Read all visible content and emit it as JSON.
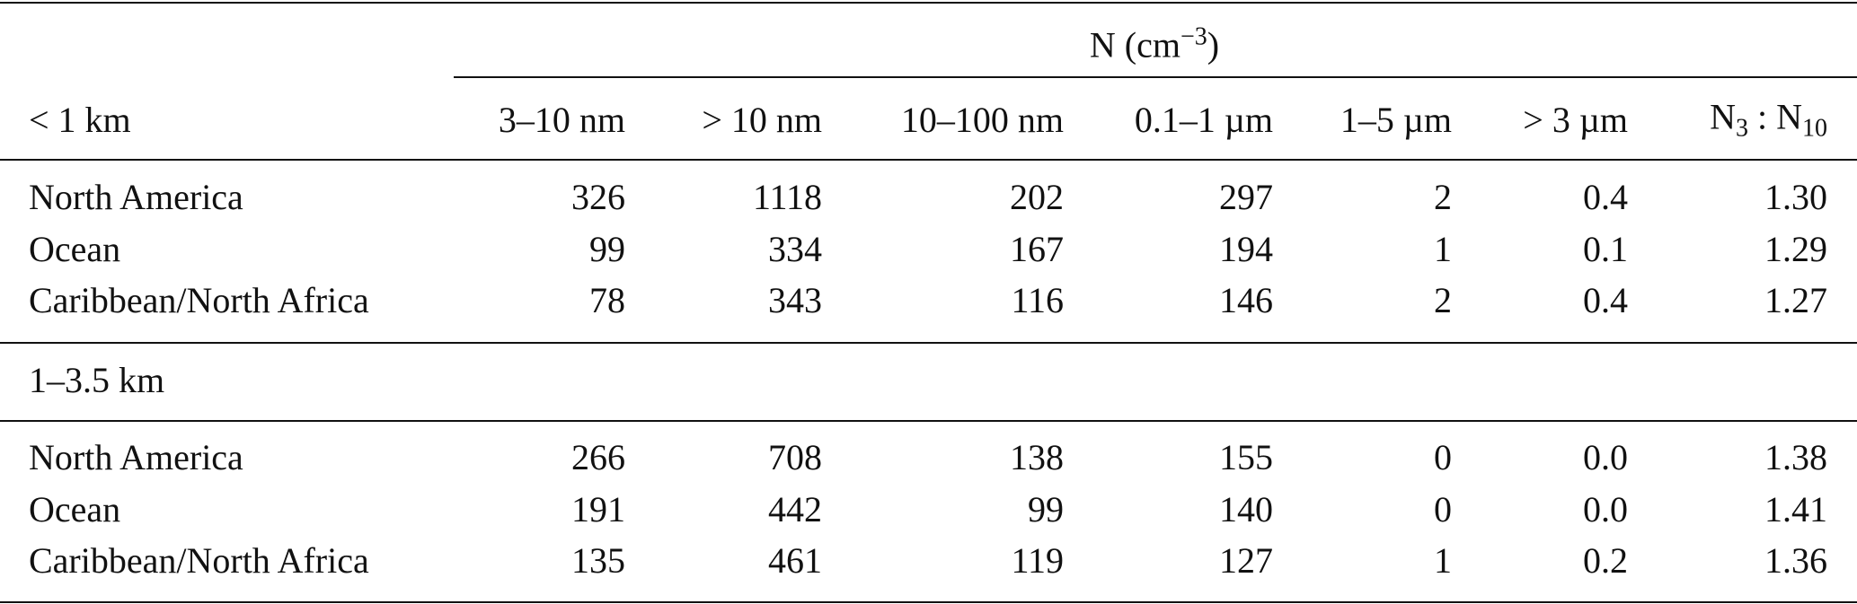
{
  "header": {
    "group": {
      "base": "N (cm",
      "exponent": "−3",
      "close": ")"
    },
    "columns": [
      "3–10 nm",
      "> 10 nm",
      "10–100 nm",
      "0.1–1 µm",
      "1–5 µm",
      "> 3 µm"
    ],
    "ratio": {
      "a": "N",
      "a_sub": "3",
      "sep": " : ",
      "b": "N",
      "b_sub": "10"
    }
  },
  "sections": [
    {
      "label": "< 1 km",
      "rows": [
        {
          "name": "North America",
          "values": [
            "326",
            "1118",
            "202",
            "297",
            "2",
            "0.4",
            "1.30"
          ]
        },
        {
          "name": "Ocean",
          "values": [
            "99",
            "334",
            "167",
            "194",
            "1",
            "0.1",
            "1.29"
          ]
        },
        {
          "name": "Caribbean/North Africa",
          "values": [
            "78",
            "343",
            "116",
            "146",
            "2",
            "0.4",
            "1.27"
          ]
        }
      ]
    },
    {
      "label": "1–3.5 km",
      "rows": [
        {
          "name": "North America",
          "values": [
            "266",
            "708",
            "138",
            "155",
            "0",
            "0.0",
            "1.38"
          ]
        },
        {
          "name": "Ocean",
          "values": [
            "191",
            "442",
            "99",
            "140",
            "0",
            "0.0",
            "1.41"
          ]
        },
        {
          "name": "Caribbean/North Africa",
          "values": [
            "135",
            "461",
            "119",
            "127",
            "1",
            "0.2",
            "1.36"
          ]
        }
      ]
    }
  ]
}
